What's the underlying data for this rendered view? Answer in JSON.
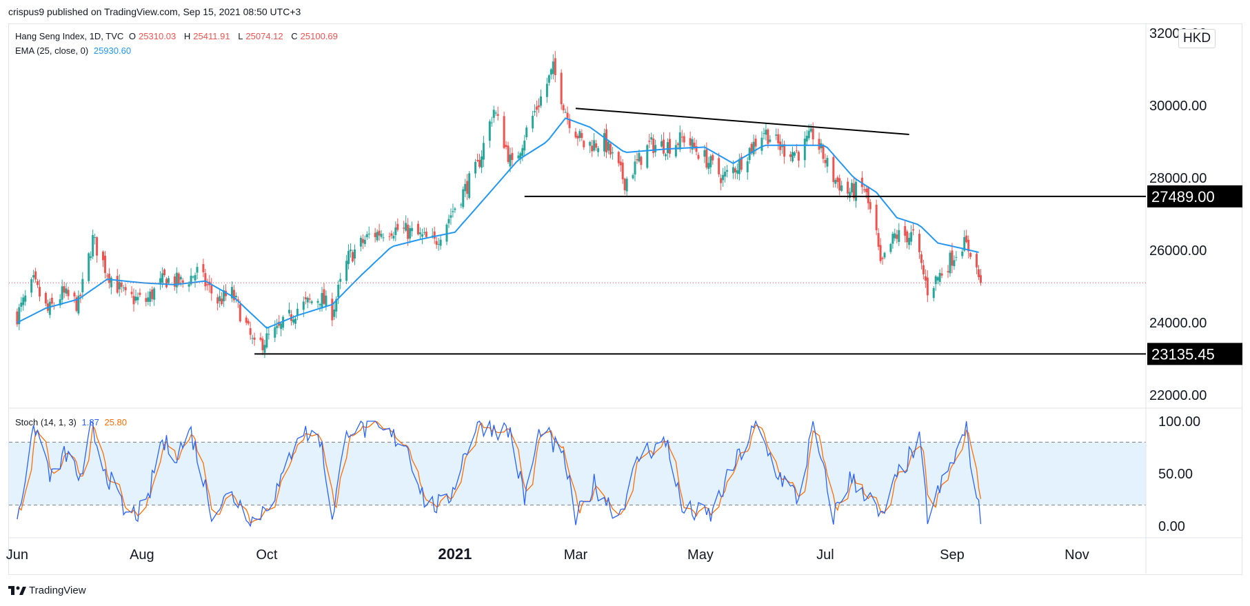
{
  "publisher": "crispus9 published on TradingView.com, Sep 15, 2021 08:50 UTC+3",
  "brand": "TradingView",
  "currency": "HKD",
  "colors": {
    "up": "#26a69a",
    "down": "#ef5350",
    "ema": "#2196f3",
    "stoch_k": "#2962ff",
    "stoch_d": "#ff6d00",
    "band": "#e3f2fd",
    "trendline": "#000000"
  },
  "legend": {
    "symbol": "Hang Seng Index, 1D, TVC",
    "o_label": "O",
    "o": "25310.03",
    "h_label": "H",
    "h": "25411.91",
    "l_label": "L",
    "l": "25074.12",
    "c_label": "C",
    "c": "25100.69",
    "ema_label": "EMA (25, close, 0)",
    "ema": "25930.60",
    "stoch_label": "Stoch (14, 1, 3)",
    "stoch_k": "1.87",
    "stoch_d": "25.80"
  },
  "chart_data": [
    {
      "type": "candlestick",
      "title": "Hang Seng Index, 1D, TVC",
      "ylim": [
        21500,
        32500
      ],
      "y_ticks": [
        "32000.00",
        "30000.00",
        "28000.00",
        "26000.00",
        "24000.00",
        "22000.00"
      ],
      "y_tick_values": [
        32000,
        30000,
        28000,
        26000,
        24000,
        22000
      ],
      "x_ticks": [
        "Jun",
        "Aug",
        "Oct",
        "2021",
        "Mar",
        "May",
        "Jul",
        "Sep",
        "Nov"
      ],
      "x_tick_dates": [
        "2020-06-01",
        "2020-08-01",
        "2020-10-01",
        "2021-01-01",
        "2021-03-01",
        "2021-05-01",
        "2021-07-01",
        "2021-09-01",
        "2021-11-01"
      ],
      "last_close": 25100.69,
      "price_labels": [
        {
          "label": "27489.00",
          "value": 27489
        },
        {
          "label": "23135.45",
          "value": 23135.45
        }
      ],
      "horizontal_lines": [
        {
          "from": "2021-02-04",
          "value": 27489
        },
        {
          "from": "2020-09-25",
          "value": 23135.45
        }
      ],
      "trendline": {
        "start": {
          "date": "2021-03-01",
          "value": 29920
        },
        "end": {
          "date": "2021-08-11",
          "value": 29200
        }
      },
      "close_anchors": [
        {
          "date": "2020-06-01",
          "value": 24200
        },
        {
          "date": "2020-06-09",
          "value": 25100
        },
        {
          "date": "2020-06-16",
          "value": 24300
        },
        {
          "date": "2020-06-23",
          "value": 24800
        },
        {
          "date": "2020-07-01",
          "value": 24500
        },
        {
          "date": "2020-07-08",
          "value": 26300
        },
        {
          "date": "2020-07-15",
          "value": 25400
        },
        {
          "date": "2020-07-24",
          "value": 24700
        },
        {
          "date": "2020-08-03",
          "value": 24600
        },
        {
          "date": "2020-08-12",
          "value": 25200
        },
        {
          "date": "2020-08-21",
          "value": 25100
        },
        {
          "date": "2020-08-28",
          "value": 25400
        },
        {
          "date": "2020-09-07",
          "value": 24600
        },
        {
          "date": "2020-09-14",
          "value": 24800
        },
        {
          "date": "2020-09-21",
          "value": 23900
        },
        {
          "date": "2020-09-25",
          "value": 23300
        },
        {
          "date": "2020-10-07",
          "value": 23800
        },
        {
          "date": "2020-10-16",
          "value": 24400
        },
        {
          "date": "2020-10-27",
          "value": 24700
        },
        {
          "date": "2020-11-02",
          "value": 24300
        },
        {
          "date": "2020-11-10",
          "value": 25800
        },
        {
          "date": "2020-11-20",
          "value": 26400
        },
        {
          "date": "2020-12-01",
          "value": 26600
        },
        {
          "date": "2020-12-10",
          "value": 26500
        },
        {
          "date": "2020-12-22",
          "value": 26200
        },
        {
          "date": "2021-01-04",
          "value": 27500
        },
        {
          "date": "2021-01-12",
          "value": 28300
        },
        {
          "date": "2021-01-20",
          "value": 29900
        },
        {
          "date": "2021-01-29",
          "value": 28300
        },
        {
          "date": "2021-02-05",
          "value": 29300
        },
        {
          "date": "2021-02-18",
          "value": 31000
        },
        {
          "date": "2021-02-25",
          "value": 29700
        },
        {
          "date": "2021-03-05",
          "value": 28900
        },
        {
          "date": "2021-03-15",
          "value": 29000
        },
        {
          "date": "2021-03-25",
          "value": 27900
        },
        {
          "date": "2021-04-06",
          "value": 28900
        },
        {
          "date": "2021-04-16",
          "value": 28900
        },
        {
          "date": "2021-04-23",
          "value": 29100
        },
        {
          "date": "2021-05-04",
          "value": 28500
        },
        {
          "date": "2021-05-12",
          "value": 28000
        },
        {
          "date": "2021-05-20",
          "value": 28400
        },
        {
          "date": "2021-06-01",
          "value": 29300
        },
        {
          "date": "2021-06-10",
          "value": 28800
        },
        {
          "date": "2021-06-18",
          "value": 28700
        },
        {
          "date": "2021-06-25",
          "value": 29200
        },
        {
          "date": "2021-07-05",
          "value": 28000
        },
        {
          "date": "2021-07-12",
          "value": 27600
        },
        {
          "date": "2021-07-20",
          "value": 27700
        },
        {
          "date": "2021-07-26",
          "value": 26400
        },
        {
          "date": "2021-07-28",
          "value": 25500
        },
        {
          "date": "2021-08-04",
          "value": 26400
        },
        {
          "date": "2021-08-13",
          "value": 26400
        },
        {
          "date": "2021-08-20",
          "value": 24900
        },
        {
          "date": "2021-08-27",
          "value": 25400
        },
        {
          "date": "2021-09-06",
          "value": 26200
        },
        {
          "date": "2021-09-10",
          "value": 26000
        },
        {
          "date": "2021-09-15",
          "value": 25100
        }
      ],
      "ema_anchors": [
        {
          "date": "2020-06-01",
          "value": 24000
        },
        {
          "date": "2020-06-15",
          "value": 24400
        },
        {
          "date": "2020-07-01",
          "value": 24650
        },
        {
          "date": "2020-07-15",
          "value": 25200
        },
        {
          "date": "2020-08-01",
          "value": 25100
        },
        {
          "date": "2020-08-17",
          "value": 25050
        },
        {
          "date": "2020-09-01",
          "value": 25150
        },
        {
          "date": "2020-09-15",
          "value": 24700
        },
        {
          "date": "2020-10-01",
          "value": 23850
        },
        {
          "date": "2020-10-16",
          "value": 24200
        },
        {
          "date": "2020-11-02",
          "value": 24500
        },
        {
          "date": "2020-11-16",
          "value": 25300
        },
        {
          "date": "2020-12-01",
          "value": 26100
        },
        {
          "date": "2020-12-15",
          "value": 26300
        },
        {
          "date": "2021-01-01",
          "value": 26500
        },
        {
          "date": "2021-01-15",
          "value": 27400
        },
        {
          "date": "2021-02-01",
          "value": 28500
        },
        {
          "date": "2021-02-15",
          "value": 29000
        },
        {
          "date": "2021-02-24",
          "value": 29650
        },
        {
          "date": "2021-03-08",
          "value": 29400
        },
        {
          "date": "2021-03-25",
          "value": 28700
        },
        {
          "date": "2021-04-15",
          "value": 28800
        },
        {
          "date": "2021-05-03",
          "value": 28850
        },
        {
          "date": "2021-05-17",
          "value": 28400
        },
        {
          "date": "2021-06-01",
          "value": 28900
        },
        {
          "date": "2021-06-15",
          "value": 28900
        },
        {
          "date": "2021-07-01",
          "value": 28900
        },
        {
          "date": "2021-07-15",
          "value": 28000
        },
        {
          "date": "2021-07-26",
          "value": 27600
        },
        {
          "date": "2021-08-05",
          "value": 26900
        },
        {
          "date": "2021-08-16",
          "value": 26700
        },
        {
          "date": "2021-08-25",
          "value": 26200
        },
        {
          "date": "2021-09-06",
          "value": 26050
        },
        {
          "date": "2021-09-15",
          "value": 25930
        }
      ]
    },
    {
      "type": "line",
      "title": "Stoch (14, 1, 3)",
      "ylim": [
        -5,
        110
      ],
      "y_ticks": [
        "100.00",
        "50.00",
        "0.00"
      ],
      "y_tick_values": [
        100,
        50,
        0
      ],
      "band": [
        20,
        80
      ],
      "k_anchors": [
        {
          "date": "2020-06-01",
          "value": 10
        },
        {
          "date": "2020-06-10",
          "value": 95
        },
        {
          "date": "2020-06-18",
          "value": 45
        },
        {
          "date": "2020-06-25",
          "value": 70
        },
        {
          "date": "2020-07-03",
          "value": 40
        },
        {
          "date": "2020-07-07",
          "value": 95
        },
        {
          "date": "2020-07-15",
          "value": 50
        },
        {
          "date": "2020-07-24",
          "value": 10
        },
        {
          "date": "2020-08-03",
          "value": 15
        },
        {
          "date": "2020-08-10",
          "value": 80
        },
        {
          "date": "2020-08-18",
          "value": 70
        },
        {
          "date": "2020-08-25",
          "value": 90
        },
        {
          "date": "2020-09-04",
          "value": 15
        },
        {
          "date": "2020-09-14",
          "value": 30
        },
        {
          "date": "2020-09-25",
          "value": 5
        },
        {
          "date": "2020-10-08",
          "value": 40
        },
        {
          "date": "2020-10-16",
          "value": 90
        },
        {
          "date": "2020-10-27",
          "value": 85
        },
        {
          "date": "2020-11-02",
          "value": 10
        },
        {
          "date": "2020-11-10",
          "value": 95
        },
        {
          "date": "2020-11-25",
          "value": 90
        },
        {
          "date": "2020-12-08",
          "value": 80
        },
        {
          "date": "2020-12-18",
          "value": 20
        },
        {
          "date": "2020-12-28",
          "value": 20
        },
        {
          "date": "2021-01-04",
          "value": 60
        },
        {
          "date": "2021-01-12",
          "value": 98
        },
        {
          "date": "2021-01-28",
          "value": 90
        },
        {
          "date": "2021-02-04",
          "value": 25
        },
        {
          "date": "2021-02-12",
          "value": 95
        },
        {
          "date": "2021-02-24",
          "value": 60
        },
        {
          "date": "2021-03-01",
          "value": 5
        },
        {
          "date": "2021-03-10",
          "value": 40
        },
        {
          "date": "2021-03-22",
          "value": 10
        },
        {
          "date": "2021-04-02",
          "value": 70
        },
        {
          "date": "2021-04-15",
          "value": 80
        },
        {
          "date": "2021-04-22",
          "value": 15
        },
        {
          "date": "2021-05-06",
          "value": 10
        },
        {
          "date": "2021-05-18",
          "value": 60
        },
        {
          "date": "2021-05-28",
          "value": 95
        },
        {
          "date": "2021-06-08",
          "value": 50
        },
        {
          "date": "2021-06-18",
          "value": 25
        },
        {
          "date": "2021-06-25",
          "value": 95
        },
        {
          "date": "2021-07-05",
          "value": 10
        },
        {
          "date": "2021-07-13",
          "value": 45
        },
        {
          "date": "2021-07-22",
          "value": 30
        },
        {
          "date": "2021-07-28",
          "value": 5
        },
        {
          "date": "2021-08-06",
          "value": 50
        },
        {
          "date": "2021-08-16",
          "value": 80
        },
        {
          "date": "2021-08-20",
          "value": 10
        },
        {
          "date": "2021-09-01",
          "value": 60
        },
        {
          "date": "2021-09-08",
          "value": 92
        },
        {
          "date": "2021-09-15",
          "value": 1.87
        }
      ]
    }
  ]
}
